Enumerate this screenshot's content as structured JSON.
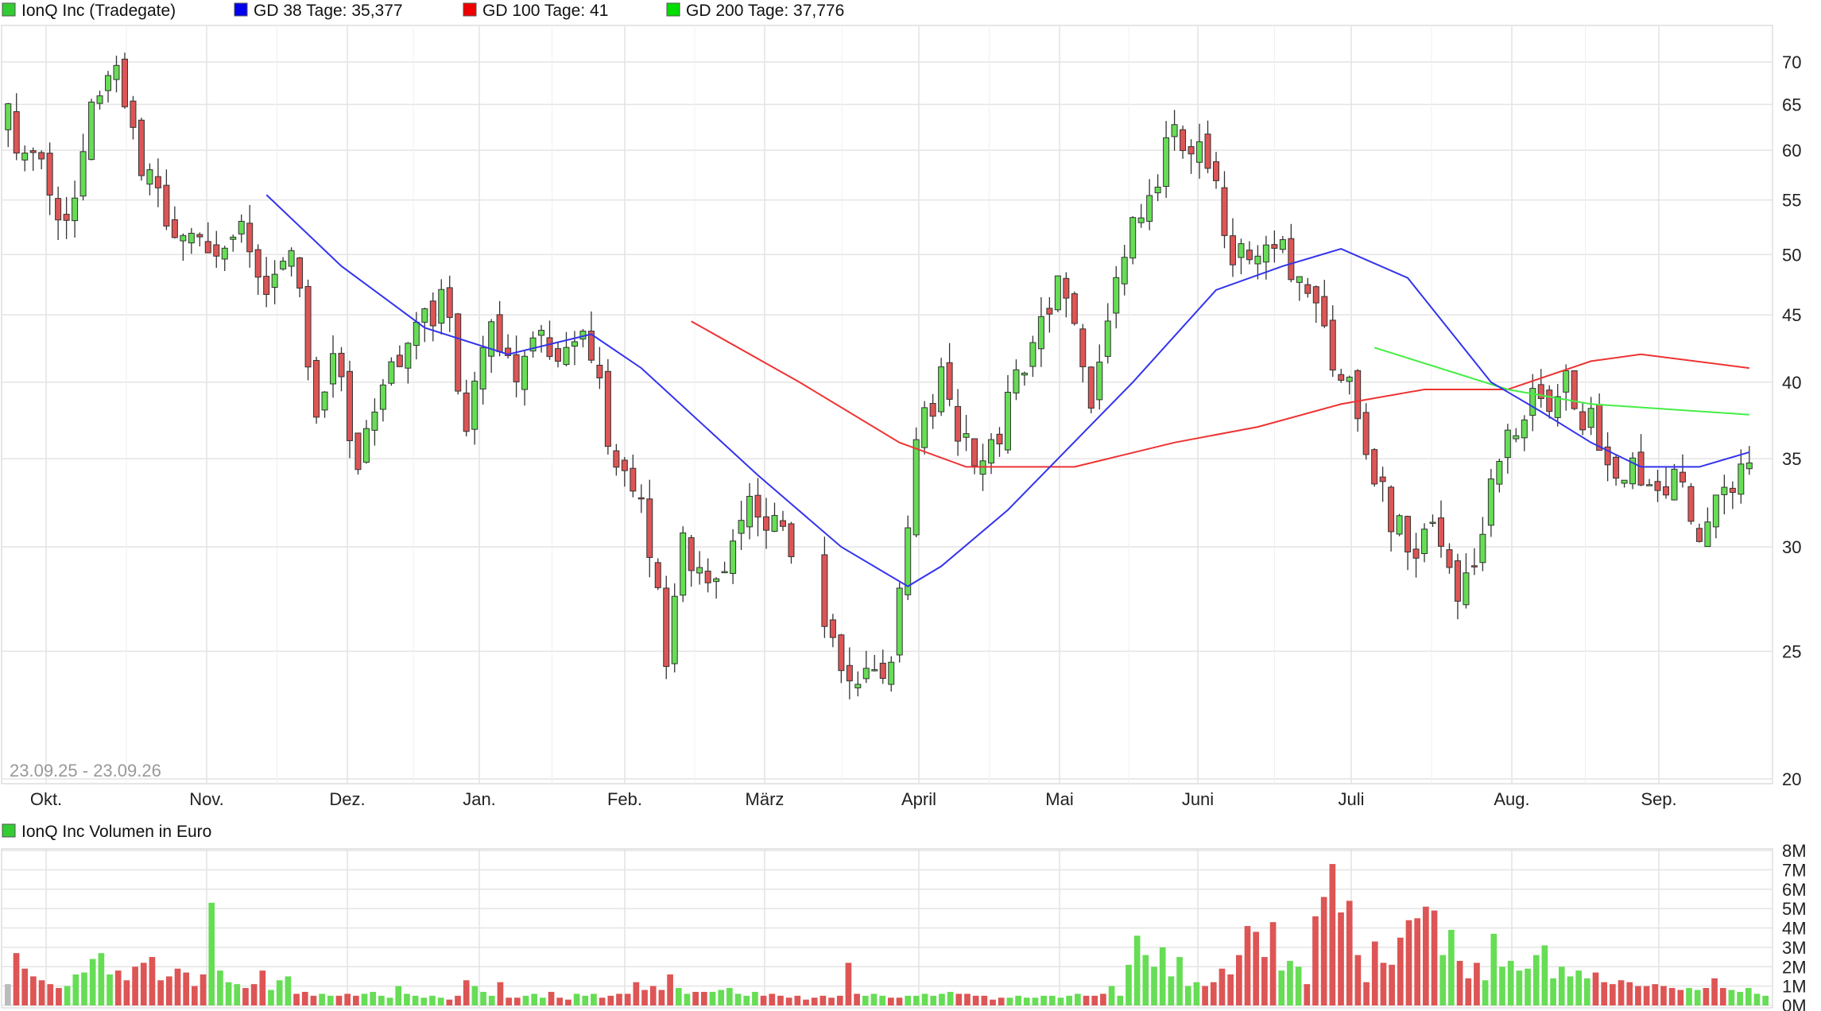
{
  "legend": [
    {
      "label": "IonQ Inc (Tradegate)",
      "color": "#33cc33"
    },
    {
      "label": "GD 38 Tage: 35,377",
      "color": "#0000ee"
    },
    {
      "label": "GD 100 Tage: 41",
      "color": "#ee0000"
    },
    {
      "label": "GD 200 Tage: 37,776",
      "color": "#00dd00"
    }
  ],
  "date_range": "23.09.25 - 23.09.26",
  "volume_legend": {
    "label": "IonQ Inc Volumen in Euro",
    "color": "#33cc33"
  },
  "colors": {
    "up": "#66dd55",
    "down": "#dd5555",
    "neutral": "#bbbbbb",
    "ma38": "#3333ee",
    "ma100": "#ee3333",
    "ma200": "#44ee44",
    "grid": "#e4e4e4"
  },
  "chart_data": [
    {
      "type": "candlestick",
      "title": "IonQ Inc (Tradegate)",
      "x_labels": [
        "Okt.",
        "Nov.",
        "Dez.",
        "Jan.",
        "Feb.",
        "März",
        "April",
        "Mai",
        "Juni",
        "Juli",
        "Aug.",
        "Sep."
      ],
      "y_ticks": [
        20,
        25,
        30,
        35,
        40,
        45,
        50,
        55,
        60,
        65,
        70
      ],
      "y_scale": "log",
      "ylim": [
        20,
        73
      ],
      "grid": true,
      "anchors": [
        [
          0,
          63
        ],
        [
          4,
          58
        ],
        [
          7,
          52
        ],
        [
          10,
          67
        ],
        [
          13,
          71
        ],
        [
          16,
          59
        ],
        [
          20,
          51
        ],
        [
          24,
          50
        ],
        [
          28,
          54
        ],
        [
          31,
          46
        ],
        [
          34,
          51
        ],
        [
          37,
          38
        ],
        [
          39,
          42
        ],
        [
          42,
          34
        ],
        [
          45,
          40
        ],
        [
          48,
          42
        ],
        [
          52,
          46
        ],
        [
          55,
          38
        ],
        [
          58,
          43
        ],
        [
          61,
          41
        ],
        [
          64,
          44
        ],
        [
          67,
          42
        ],
        [
          70,
          43
        ],
        [
          73,
          34
        ],
        [
          76,
          32
        ],
        [
          79,
          25
        ],
        [
          81,
          30
        ],
        [
          83,
          28
        ],
        [
          86,
          29
        ],
        [
          89,
          33
        ],
        [
          92,
          31
        ],
        [
          95,
          29
        ],
        [
          98,
          27
        ],
        [
          101,
          24
        ],
        [
          104,
          25
        ],
        [
          106,
          24
        ],
        [
          108,
          30
        ],
        [
          109,
          36
        ],
        [
          112,
          40
        ],
        [
          115,
          36
        ],
        [
          118,
          35
        ],
        [
          121,
          40
        ],
        [
          124,
          45
        ],
        [
          127,
          48
        ],
        [
          130,
          39
        ],
        [
          133,
          47
        ],
        [
          135,
          52
        ],
        [
          138,
          58
        ],
        [
          141,
          62
        ],
        [
          143,
          60
        ],
        [
          145,
          55
        ],
        [
          147,
          50
        ],
        [
          150,
          49
        ],
        [
          153,
          51
        ],
        [
          155,
          48
        ],
        [
          158,
          43
        ],
        [
          161,
          40
        ],
        [
          163,
          36
        ],
        [
          166,
          31
        ],
        [
          169,
          30
        ],
        [
          171,
          31
        ],
        [
          174,
          28
        ],
        [
          176,
          30
        ],
        [
          178,
          33
        ],
        [
          181,
          37
        ],
        [
          184,
          39
        ],
        [
          187,
          40
        ],
        [
          190,
          37
        ],
        [
          193,
          35
        ],
        [
          196,
          34
        ],
        [
          198,
          32
        ],
        [
          200,
          34
        ],
        [
          203,
          31
        ],
        [
          205,
          32
        ],
        [
          207,
          34
        ],
        [
          209,
          35
        ]
      ],
      "ma38": [
        [
          31,
          55.5
        ],
        [
          40,
          49
        ],
        [
          50,
          44
        ],
        [
          60,
          42
        ],
        [
          70,
          43.5
        ],
        [
          76,
          41
        ],
        [
          90,
          34
        ],
        [
          100,
          30
        ],
        [
          108,
          28
        ],
        [
          112,
          29
        ],
        [
          120,
          32
        ],
        [
          135,
          40
        ],
        [
          145,
          47
        ],
        [
          153,
          49
        ],
        [
          160,
          50.5
        ],
        [
          168,
          48
        ],
        [
          178,
          40
        ],
        [
          184,
          38
        ],
        [
          190,
          36
        ],
        [
          196,
          34.5
        ],
        [
          203,
          34.5
        ],
        [
          209,
          35.4
        ]
      ],
      "ma100": [
        [
          82,
          44.5
        ],
        [
          95,
          40
        ],
        [
          107,
          36
        ],
        [
          115,
          34.5
        ],
        [
          128,
          34.5
        ],
        [
          140,
          36
        ],
        [
          150,
          37
        ],
        [
          160,
          38.5
        ],
        [
          170,
          39.5
        ],
        [
          180,
          39.5
        ],
        [
          190,
          41.5
        ],
        [
          196,
          42
        ],
        [
          209,
          41
        ]
      ],
      "ma200": [
        [
          164,
          42.5
        ],
        [
          180,
          39.5
        ],
        [
          190,
          38.5
        ],
        [
          209,
          37.8
        ]
      ]
    },
    {
      "type": "bar",
      "title": "IonQ Inc Volumen in Euro",
      "y_ticks": [
        "0M",
        "1M",
        "2M",
        "3M",
        "4M",
        "5M",
        "6M",
        "7M",
        "8M"
      ],
      "ylim": [
        0,
        8
      ],
      "values": [
        1.1,
        2.7,
        1.9,
        1.5,
        1.3,
        1.1,
        0.9,
        1.0,
        1.6,
        1.7,
        2.4,
        2.7,
        1.6,
        1.8,
        1.3,
        2.0,
        2.2,
        2.5,
        1.3,
        1.5,
        1.9,
        1.7,
        1.0,
        1.6,
        5.3,
        1.8,
        1.2,
        1.1,
        0.9,
        1.1,
        1.8,
        0.8,
        1.3,
        1.5,
        0.6,
        0.7,
        0.5,
        0.6,
        0.5,
        0.5,
        0.6,
        0.5,
        0.6,
        0.7,
        0.5,
        0.4,
        1.0,
        0.6,
        0.5,
        0.4,
        0.5,
        0.4,
        0.3,
        0.5,
        1.3,
        1.0,
        0.7,
        0.5,
        1.2,
        0.4,
        0.4,
        0.5,
        0.6,
        0.4,
        0.7,
        0.4,
        0.3,
        0.6,
        0.5,
        0.6,
        0.4,
        0.5,
        0.6,
        0.6,
        1.2,
        0.8,
        1.0,
        0.8,
        1.6,
        0.9,
        0.6,
        0.7,
        0.7,
        0.7,
        0.8,
        0.9,
        0.6,
        0.5,
        0.7,
        0.5,
        0.6,
        0.5,
        0.4,
        0.5,
        0.3,
        0.4,
        0.5,
        0.4,
        0.5,
        2.2,
        0.6,
        0.5,
        0.6,
        0.5,
        0.4,
        0.4,
        0.5,
        0.5,
        0.6,
        0.5,
        0.6,
        0.7,
        0.6,
        0.6,
        0.5,
        0.5,
        0.3,
        0.4,
        0.4,
        0.5,
        0.4,
        0.4,
        0.5,
        0.5,
        0.4,
        0.5,
        0.6,
        0.5,
        0.5,
        0.6,
        1.0,
        0.5,
        2.1,
        3.6,
        2.6,
        2.0,
        3.0,
        1.5,
        2.5,
        1.0,
        1.2,
        1.0,
        1.2,
        1.9,
        1.6,
        2.6,
        4.1,
        3.8,
        2.5,
        4.3,
        1.8,
        2.3,
        2.0,
        1.1,
        4.6,
        5.6,
        7.3,
        4.8,
        5.4,
        2.6,
        1.2,
        3.3,
        2.2,
        2.1,
        3.5,
        4.4,
        4.5,
        5.1,
        4.9,
        2.6,
        3.9,
        2.3,
        1.4,
        2.2,
        1.3,
        3.7,
        2.0,
        2.3,
        1.8,
        1.9,
        2.6,
        3.1,
        1.4,
        2.0,
        1.5,
        1.8,
        1.4,
        1.7,
        1.2,
        1.1,
        1.3,
        1.2,
        1.0,
        1.0,
        1.1,
        1.0,
        0.9,
        0.8,
        0.9,
        0.8,
        0.9,
        1.4,
        0.9,
        0.8,
        0.7,
        0.9,
        0.6,
        0.5
      ]
    }
  ]
}
